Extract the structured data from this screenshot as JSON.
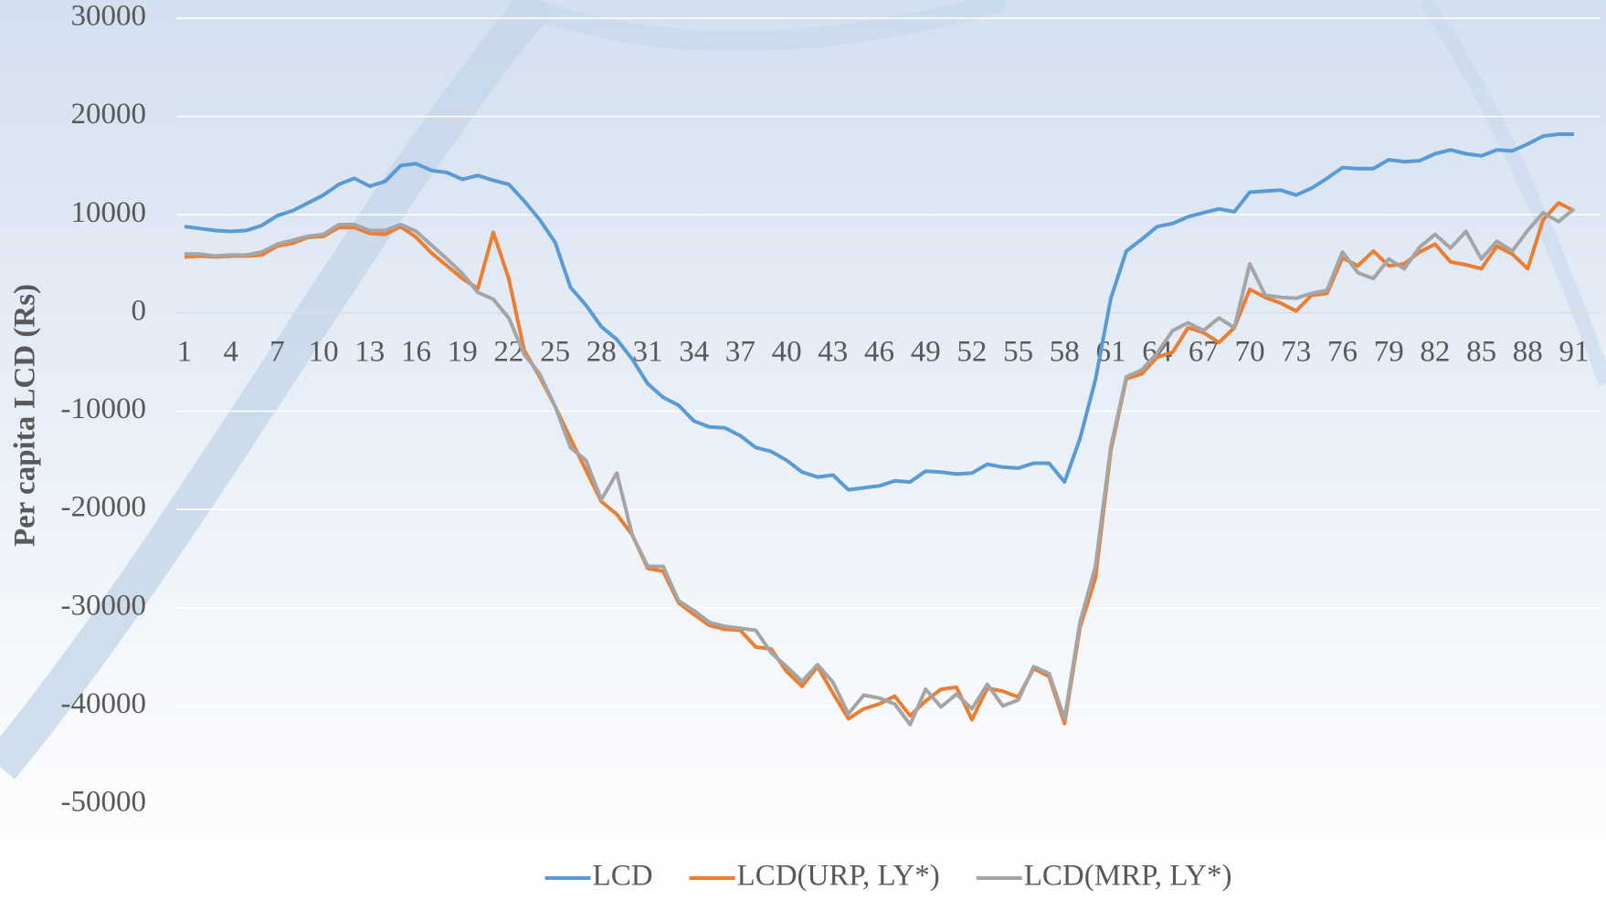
{
  "chart_data": {
    "type": "line",
    "y_label": "Per capita LCD (Rs)",
    "x": [
      1,
      2,
      3,
      4,
      5,
      6,
      7,
      8,
      9,
      10,
      11,
      12,
      13,
      14,
      15,
      16,
      17,
      18,
      19,
      20,
      21,
      22,
      23,
      24,
      25,
      26,
      27,
      28,
      29,
      30,
      31,
      32,
      33,
      34,
      35,
      36,
      37,
      38,
      39,
      40,
      41,
      42,
      43,
      44,
      45,
      46,
      47,
      48,
      49,
      50,
      51,
      52,
      53,
      54,
      55,
      56,
      57,
      58,
      59,
      60,
      61,
      62,
      63,
      64,
      65,
      66,
      67,
      68,
      69,
      70,
      71,
      72,
      73,
      74,
      75,
      76,
      77,
      78,
      79,
      80,
      81,
      82,
      83,
      84,
      85,
      86,
      87,
      88,
      89,
      90,
      91
    ],
    "xlim": [
      1,
      91
    ],
    "xticks": [
      1,
      4,
      7,
      10,
      13,
      16,
      19,
      22,
      25,
      28,
      31,
      34,
      37,
      40,
      43,
      46,
      49,
      52,
      55,
      58,
      61,
      64,
      67,
      70,
      73,
      76,
      79,
      82,
      85,
      88,
      91
    ],
    "ylim": [
      -50000,
      30000
    ],
    "yticks": [
      -50000,
      -40000,
      -30000,
      -20000,
      -10000,
      0,
      10000,
      20000,
      30000
    ],
    "grid": true,
    "legend": "bottom",
    "series": [
      {
        "name": "LCD",
        "color": "#5b9bd5",
        "values": [
          8800,
          8600,
          8400,
          8300,
          8400,
          8900,
          9900,
          10400,
          11200,
          12000,
          13100,
          13700,
          12900,
          13400,
          15000,
          15200,
          14500,
          14300,
          13600,
          14000,
          13500,
          13100,
          11400,
          9500,
          7200,
          2600,
          800,
          -1400,
          -2700,
          -4700,
          -7200,
          -8600,
          -9400,
          -11000,
          -11600,
          -11700,
          -12500,
          -13700,
          -14100,
          -15000,
          -16200,
          -16700,
          -16500,
          -18000,
          -17800,
          -17600,
          -17100,
          -17200,
          -16100,
          -16200,
          -16400,
          -16300,
          -15400,
          -15700,
          -15800,
          -15300,
          -15300,
          -17200,
          -12800,
          -6800,
          1500,
          6300,
          7500,
          8800,
          9100,
          9800,
          10200,
          10600,
          10300,
          12300,
          12400,
          12500,
          12000,
          12700,
          13700,
          14800,
          14700,
          14700,
          15600,
          15400,
          15500,
          16200,
          16600,
          16200,
          16000,
          16600,
          16500,
          17200,
          18000,
          18200,
          18200
        ]
      },
      {
        "name": "LCD(URP, LY*)",
        "color": "#ed7d31",
        "values": [
          5700,
          5800,
          5700,
          5800,
          5800,
          5900,
          6800,
          7100,
          7700,
          7800,
          8700,
          8700,
          8100,
          8000,
          8800,
          7700,
          6100,
          4800,
          3500,
          2500,
          8200,
          3500,
          -3800,
          -6500,
          -9500,
          -12800,
          -16000,
          -19200,
          -20500,
          -22600,
          -26000,
          -26300,
          -29500,
          -30700,
          -31800,
          -32200,
          -32300,
          -34000,
          -34200,
          -36500,
          -38000,
          -36000,
          -38700,
          -41300,
          -40300,
          -39800,
          -39000,
          -41000,
          -39500,
          -38300,
          -38100,
          -41400,
          -38200,
          -38500,
          -39100,
          -36200,
          -37000,
          -41800,
          -32000,
          -27000,
          -14000,
          -6700,
          -6200,
          -4500,
          -4000,
          -1500,
          -2000,
          -3000,
          -1500,
          2400,
          1600,
          1000,
          200,
          1800,
          2000,
          5600,
          4800,
          6300,
          4800,
          5000,
          6200,
          7000,
          5200,
          4900,
          4500,
          6800,
          6000,
          4500,
          9500,
          11200,
          10400
        ]
      },
      {
        "name": "LCD(MRP, LY*)",
        "color": "#a5a5a5",
        "values": [
          6000,
          6000,
          5800,
          5900,
          5900,
          6200,
          7000,
          7400,
          7800,
          8000,
          9000,
          9000,
          8400,
          8400,
          9000,
          8300,
          6900,
          5500,
          4000,
          2100,
          1400,
          -500,
          -4200,
          -6200,
          -9500,
          -13700,
          -15000,
          -19000,
          -16300,
          -22600,
          -25800,
          -25800,
          -29300,
          -30300,
          -31500,
          -31900,
          -32100,
          -32300,
          -34600,
          -36000,
          -37500,
          -35800,
          -37600,
          -40800,
          -38900,
          -39200,
          -39800,
          -41900,
          -38300,
          -40100,
          -38800,
          -40300,
          -37800,
          -40000,
          -39400,
          -36000,
          -36700,
          -41300,
          -31500,
          -25800,
          -13600,
          -6500,
          -5800,
          -4100,
          -1800,
          -1000,
          -1800,
          -500,
          -1500,
          5000,
          1800,
          1600,
          1500,
          2000,
          2300,
          6200,
          4100,
          3500,
          5500,
          4500,
          6700,
          8000,
          6600,
          8300,
          5500,
          7300,
          6300,
          8400,
          10200,
          9300,
          10600
        ]
      }
    ]
  }
}
